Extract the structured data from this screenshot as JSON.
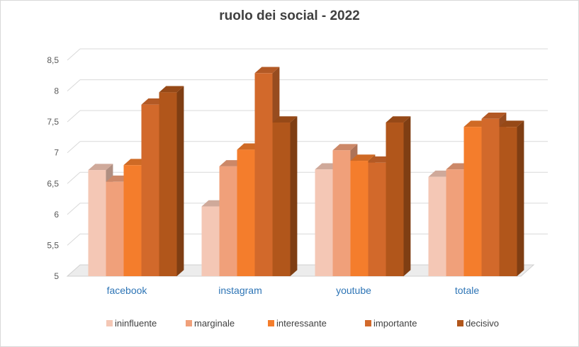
{
  "chart_data": {
    "type": "bar",
    "title": "ruolo dei social  - 2022",
    "categories": [
      "facebook",
      "instagram",
      "youtube",
      "totale"
    ],
    "series": [
      {
        "name": "ininfluente",
        "values": [
          6.72,
          6.13,
          6.73,
          6.61
        ],
        "color": "#f4c7b5"
      },
      {
        "name": "marginale",
        "values": [
          6.53,
          6.78,
          7.04,
          6.73
        ],
        "color": "#f0a07a"
      },
      {
        "name": "interessante",
        "values": [
          6.8,
          7.05,
          6.87,
          7.42
        ],
        "color": "#f47d2c"
      },
      {
        "name": "importante",
        "values": [
          7.78,
          8.29,
          6.84,
          7.55
        ],
        "color": "#d2692b"
      },
      {
        "name": "decisivo",
        "values": [
          7.98,
          7.49,
          7.49,
          7.42
        ],
        "color": "#b1561b"
      }
    ],
    "yticks": [
      "5",
      "5,5",
      "6",
      "6,5",
      "7",
      "7,5",
      "8",
      "8,5"
    ],
    "ylim": [
      5,
      8.5
    ],
    "grid": true,
    "legend": "bottom"
  }
}
